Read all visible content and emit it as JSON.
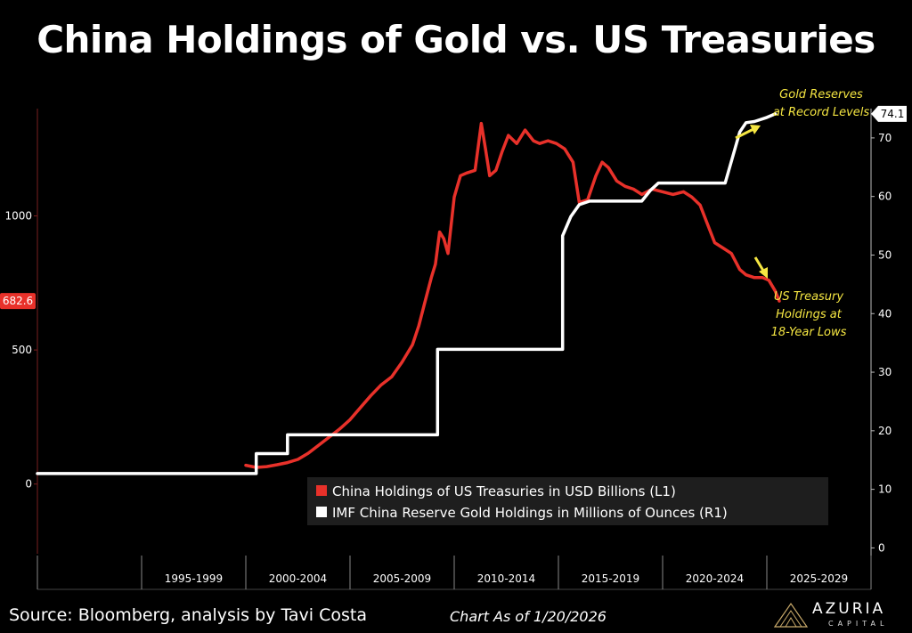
{
  "page": {
    "title": "China Holdings of Gold vs. US Treasuries",
    "source": "Source: Bloomberg, analysis by Tavi Costa",
    "chart_as_of": "Chart As of 1/20/2026",
    "brand": {
      "name": "AZURIA",
      "sub": "CAPITAL"
    }
  },
  "chart_data": {
    "type": "line",
    "title": "China Holdings of Gold vs. US Treasuries",
    "x_categories": [
      "1995-1999",
      "2000-2004",
      "2005-2009",
      "2010-2014",
      "2015-2019",
      "2020-2024",
      "2025-2029"
    ],
    "x_range": [
      1990,
      2030
    ],
    "left_axis": {
      "ticks": [
        0,
        500,
        1000
      ],
      "range": [
        -260,
        1400
      ],
      "last_value_label": "682.6",
      "last_value": 682.6
    },
    "right_axis": {
      "ticks": [
        0,
        10,
        20,
        30,
        40,
        50,
        60,
        70
      ],
      "range": [
        -1,
        75
      ],
      "last_value_label": "74.1",
      "last_value": 74.1
    },
    "legend_position": "bottom-center",
    "series": [
      {
        "name": "China Holdings of US Treasuries in USD Billions (L1)",
        "axis": "left",
        "color": "#e8312a",
        "x": [
          2000.0,
          2000.5,
          2001.0,
          2001.5,
          2002.0,
          2002.5,
          2003.0,
          2003.5,
          2004.0,
          2004.5,
          2005.0,
          2005.5,
          2006.0,
          2006.5,
          2007.0,
          2007.5,
          2008.0,
          2008.3,
          2008.6,
          2008.9,
          2009.1,
          2009.3,
          2009.5,
          2009.7,
          2010.0,
          2010.3,
          2010.6,
          2011.0,
          2011.3,
          2011.5,
          2011.7,
          2011.85,
          2012.0,
          2012.3,
          2012.6,
          2013.0,
          2013.4,
          2013.8,
          2014.1,
          2014.5,
          2014.9,
          2015.3,
          2015.7,
          2016.0,
          2016.4,
          2016.8,
          2017.1,
          2017.4,
          2017.8,
          2018.2,
          2018.6,
          2019.0,
          2019.5,
          2020.0,
          2020.5,
          2021.0,
          2021.4,
          2021.8,
          2022.1,
          2022.5,
          2022.9,
          2023.3,
          2023.7,
          2024.0,
          2024.4,
          2024.8,
          2025.1,
          2025.4,
          2025.6
        ],
        "values": [
          70,
          62,
          65,
          72,
          80,
          92,
          115,
          145,
          175,
          205,
          240,
          285,
          330,
          370,
          400,
          455,
          520,
          590,
          680,
          770,
          820,
          940,
          915,
          860,
          1070,
          1150,
          1160,
          1170,
          1345,
          1250,
          1150,
          1160,
          1170,
          1240,
          1300,
          1270,
          1320,
          1280,
          1270,
          1280,
          1270,
          1250,
          1200,
          1050,
          1060,
          1150,
          1200,
          1180,
          1130,
          1110,
          1100,
          1080,
          1100,
          1090,
          1080,
          1090,
          1070,
          1040,
          980,
          900,
          880,
          860,
          800,
          780,
          770,
          770,
          760,
          720,
          682.6
        ]
      },
      {
        "name": "IMF China Reserve Gold Holdings in Millions of Ounces (R1)",
        "axis": "right",
        "color": "#ffffff",
        "x": [
          1990.0,
          2000.5,
          2000.5,
          2002.0,
          2002.0,
          2009.2,
          2009.2,
          2015.2,
          2015.2,
          2015.6,
          2016.0,
          2016.5,
          2019.0,
          2019.4,
          2019.8,
          2023.0,
          2023.3,
          2023.7,
          2024.0,
          2024.4,
          2025.0,
          2025.4
        ],
        "values": [
          12.7,
          12.7,
          16.1,
          16.1,
          19.3,
          19.3,
          33.9,
          33.9,
          53.3,
          56.6,
          58.6,
          59.2,
          59.2,
          61.0,
          62.3,
          62.3,
          66.0,
          71.0,
          72.6,
          72.8,
          73.5,
          74.1
        ]
      }
    ],
    "annotations": [
      {
        "text": [
          "Gold Reserves",
          "at Record Levels"
        ],
        "color": "#f5e642",
        "arrow": "up-right"
      },
      {
        "text": [
          "US Treasury",
          "Holdings at",
          "18-Year Lows"
        ],
        "color": "#f5e642",
        "arrow": "down-right"
      }
    ]
  }
}
